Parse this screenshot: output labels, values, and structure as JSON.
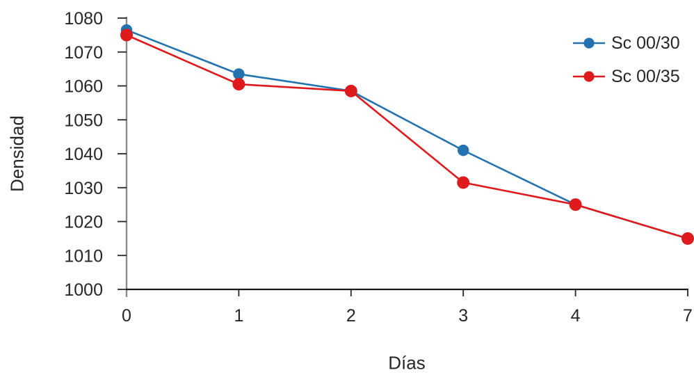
{
  "chart_data": {
    "type": "line",
    "title": "",
    "xlabel": "Días",
    "ylabel": "Densidad",
    "x_categories": [
      "0",
      "1",
      "2",
      "3",
      "4",
      "7"
    ],
    "series": [
      {
        "name": "Sc 00/30",
        "color": "#2273B0",
        "values": [
          1076.5,
          1063.5,
          1058.5,
          1041,
          1025,
          1015
        ]
      },
      {
        "name": "Sc 00/35",
        "color": "#DE1A1C",
        "values": [
          1075,
          1060.5,
          1058.5,
          1031.5,
          1025,
          1015
        ]
      }
    ],
    "ylim": [
      1000,
      1080
    ],
    "ytick_step": 10,
    "grid": false,
    "legend_position": "top-right"
  },
  "colors": {
    "x_axis": "#1A1A1A",
    "y_axis": "#8C8C8C",
    "tick": "#262626",
    "text": "#262626",
    "background": "#FFFFFF"
  }
}
